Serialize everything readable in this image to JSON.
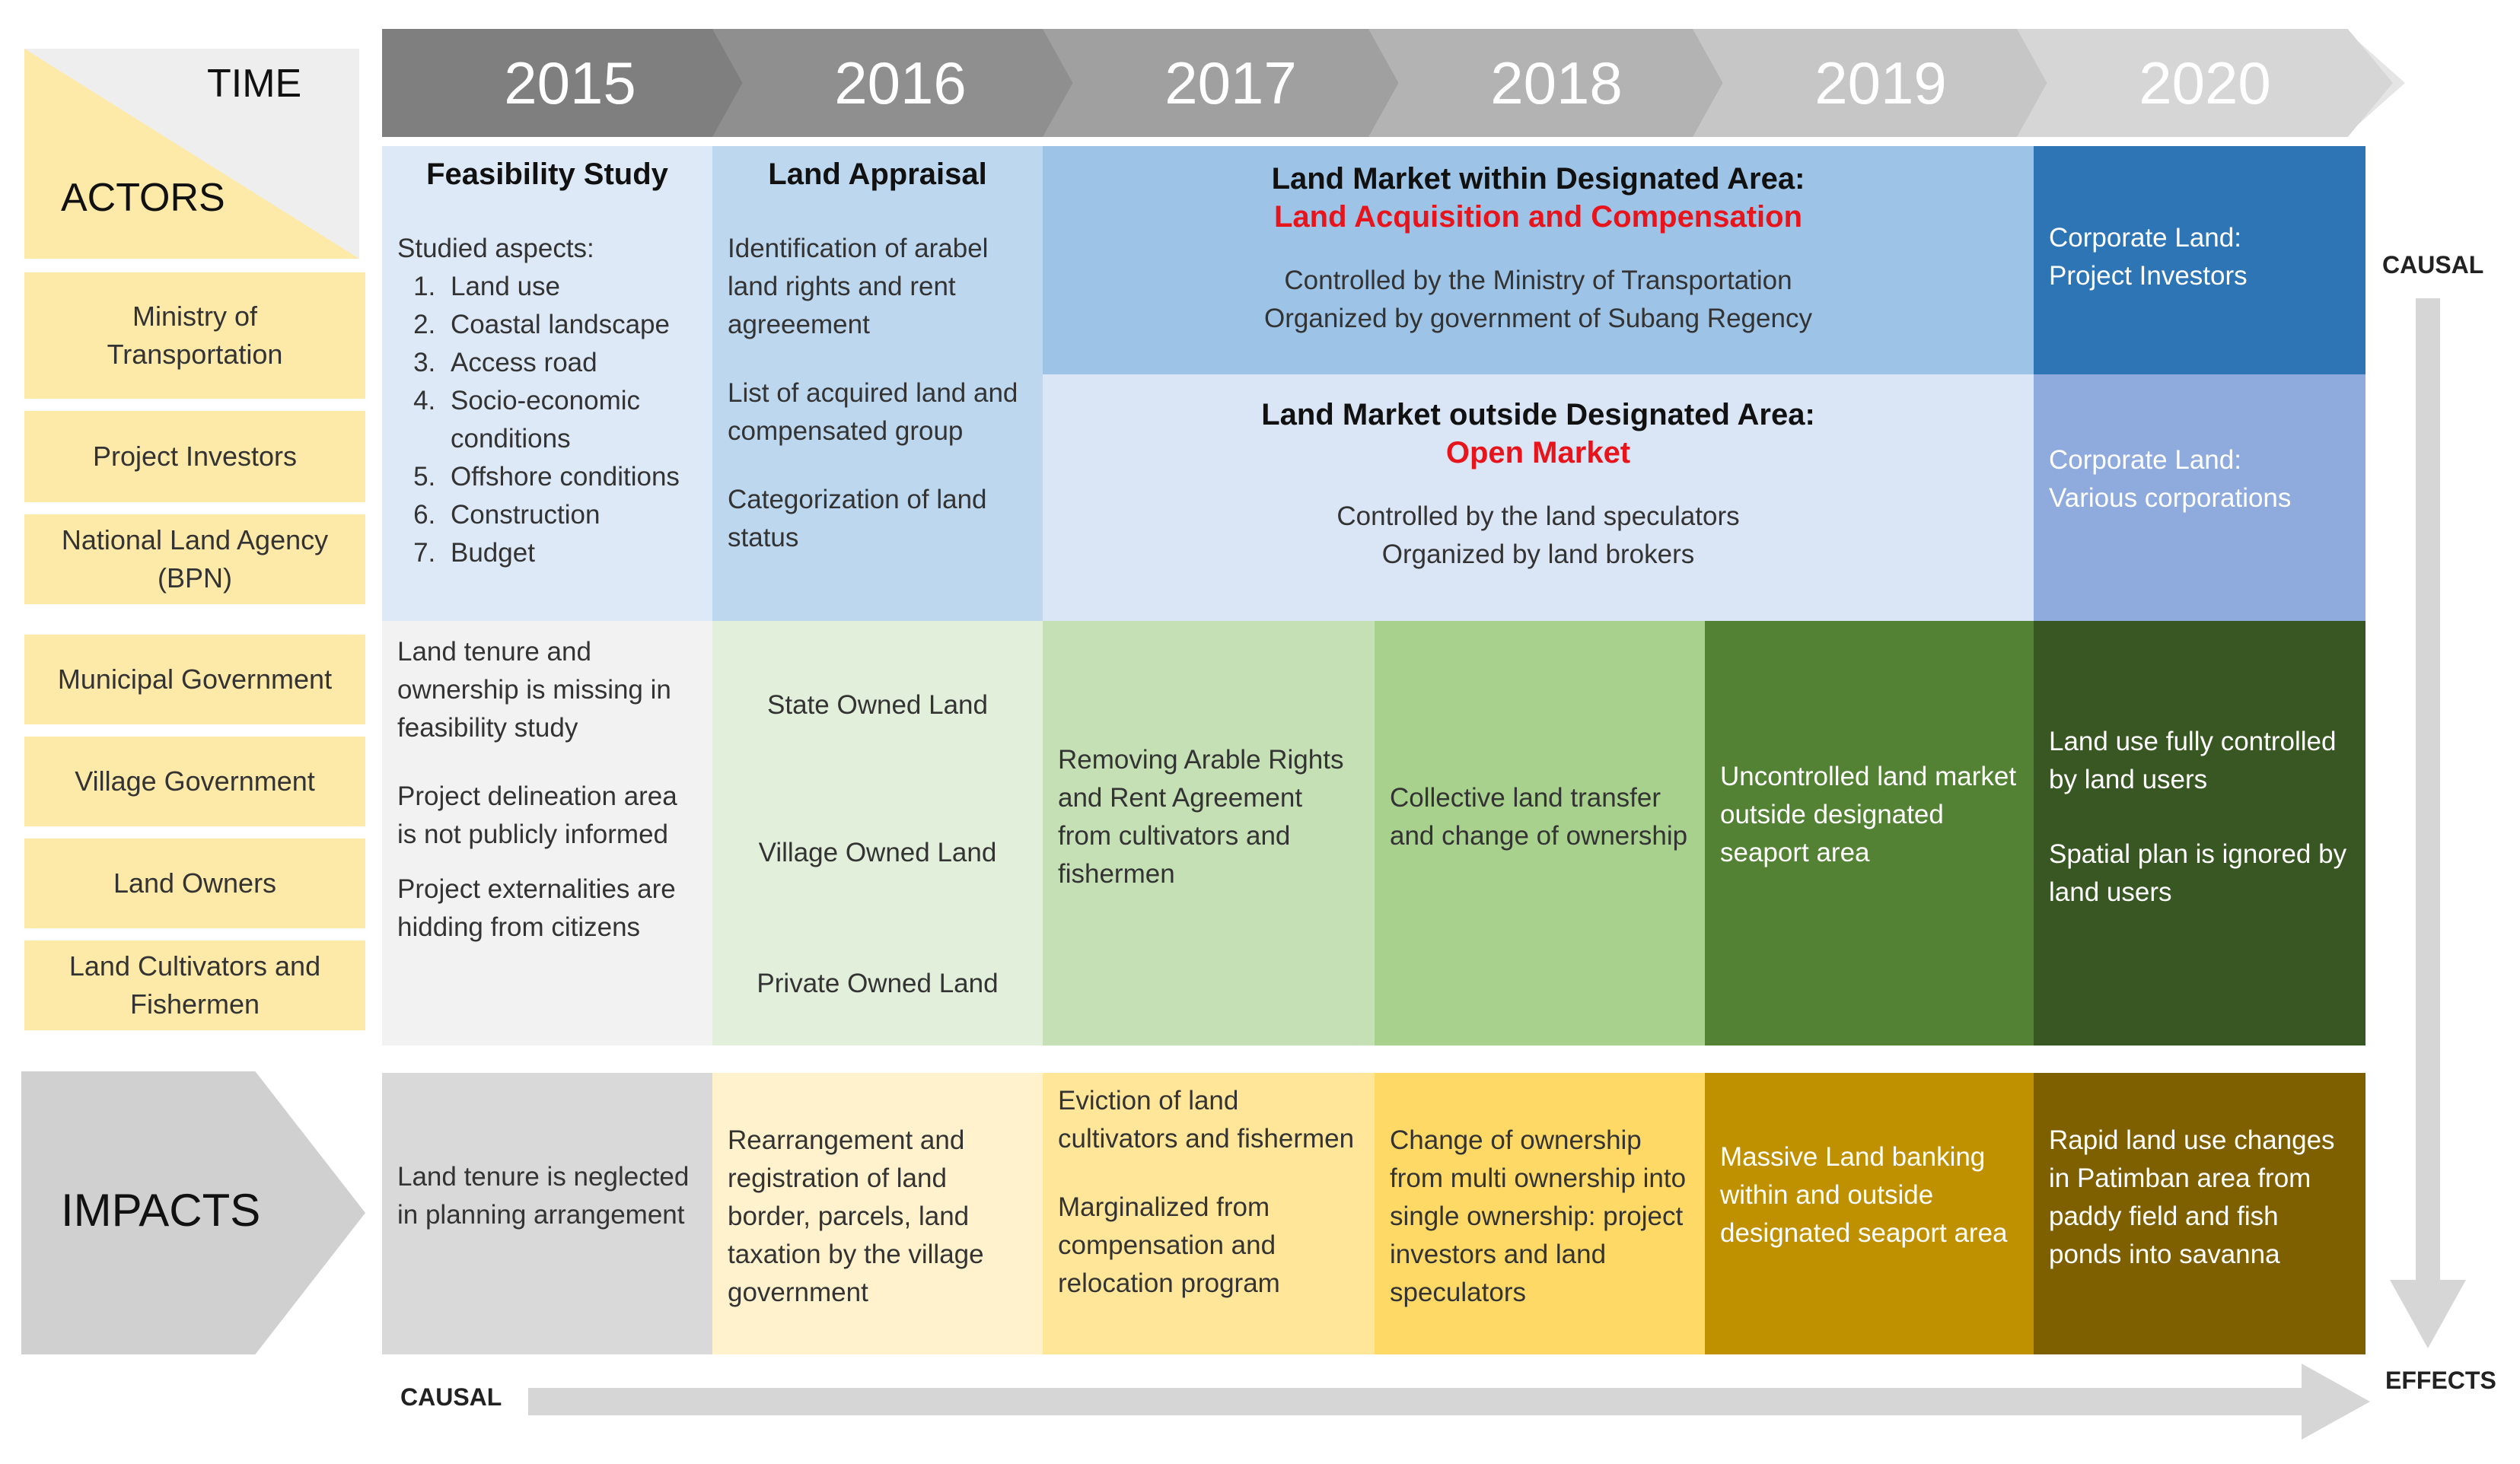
{
  "header": {
    "time_label": "TIME",
    "actors_label": "ACTORS"
  },
  "years": [
    "2015",
    "2016",
    "2017",
    "2018",
    "2019",
    "2020"
  ],
  "actors": [
    "Ministry of\nTransportation",
    "Project Investors",
    "National Land Agency\n(BPN)",
    "Municipal Government",
    "Village Government",
    "Land Owners",
    "Land Cultivators and\nFishermen"
  ],
  "feasibility": {
    "title": "Feasibility Study",
    "intro": "Studied aspects:",
    "items": [
      "Land use",
      "Coastal landscape",
      "Access road",
      "Socio-economic conditions",
      "Offshore conditions",
      "Construction",
      "Budget"
    ]
  },
  "appraisal": {
    "title": "Land Appraisal",
    "p1": "Identification of arabel land rights and rent agreeement",
    "p2": "List of acquired land and compensated group",
    "p3": "Categorization of land status"
  },
  "market_inside": {
    "title": "Land Market within Designated Area:",
    "subtitle": "Land Acquisition and Compensation",
    "line1": "Controlled by the Ministry of Transportation",
    "line2": "Organized by government  of Subang Regency"
  },
  "market_outside": {
    "title": "Land Market outside Designated Area:",
    "subtitle": "Open Market",
    "line1": "Controlled by the land speculators",
    "line2": "Organized by land brokers"
  },
  "corporate": {
    "investors": "Corporate Land:\nProject Investors",
    "various": "Corporate Land:\nVarious corporations"
  },
  "local": {
    "c2015_p1": "Land tenure and ownership is missing in feasibility study",
    "c2015_p2": "Project delineation area is not publicly informed",
    "c2015_p3": "Project externalities are hidding from citizens",
    "c2016_p1": "State Owned Land",
    "c2016_p2": "Village Owned Land",
    "c2016_p3": "Private Owned Land",
    "c2017": "Removing Arable Rights and Rent Agreement from cultivators and fishermen",
    "c2018": "Collective land transfer and change of ownership",
    "c2019": "Uncontrolled land market outside designated seaport area",
    "c2020_p1": "Land use fully controlled by land users",
    "c2020_p2": "Spatial plan is ignored by land users"
  },
  "impacts": {
    "label": "IMPACTS",
    "i2015": "Land tenure is neglected in planning arrangement",
    "i2016": "Rearrangement and registration of land border, parcels, land taxation by the village government",
    "i2017_p1": "Eviction of land cultivators and fishermen",
    "i2017_p2": "Marginalized from compensation and relocation program",
    "i2018": "Change of ownership from multi ownership into single ownership: project investors and land speculators",
    "i2019": "Massive Land banking within and outside designated seaport area",
    "i2020": "Rapid land use changes in Patimban area from paddy field and fish ponds into savanna"
  },
  "axes": {
    "causal_right": "CAUSAL",
    "causal_bottom": "CAUSAL",
    "effects": "EFFECTS"
  },
  "colors": {
    "actor_bg": "#fde9a8",
    "inside_blue": "#9dc3e6",
    "outside_blue": "#dae6f5",
    "corp_dark": "#2e75b6",
    "corp_mid": "#8faadc",
    "red": "#e8141c",
    "impact_dark": "#7f6000"
  }
}
